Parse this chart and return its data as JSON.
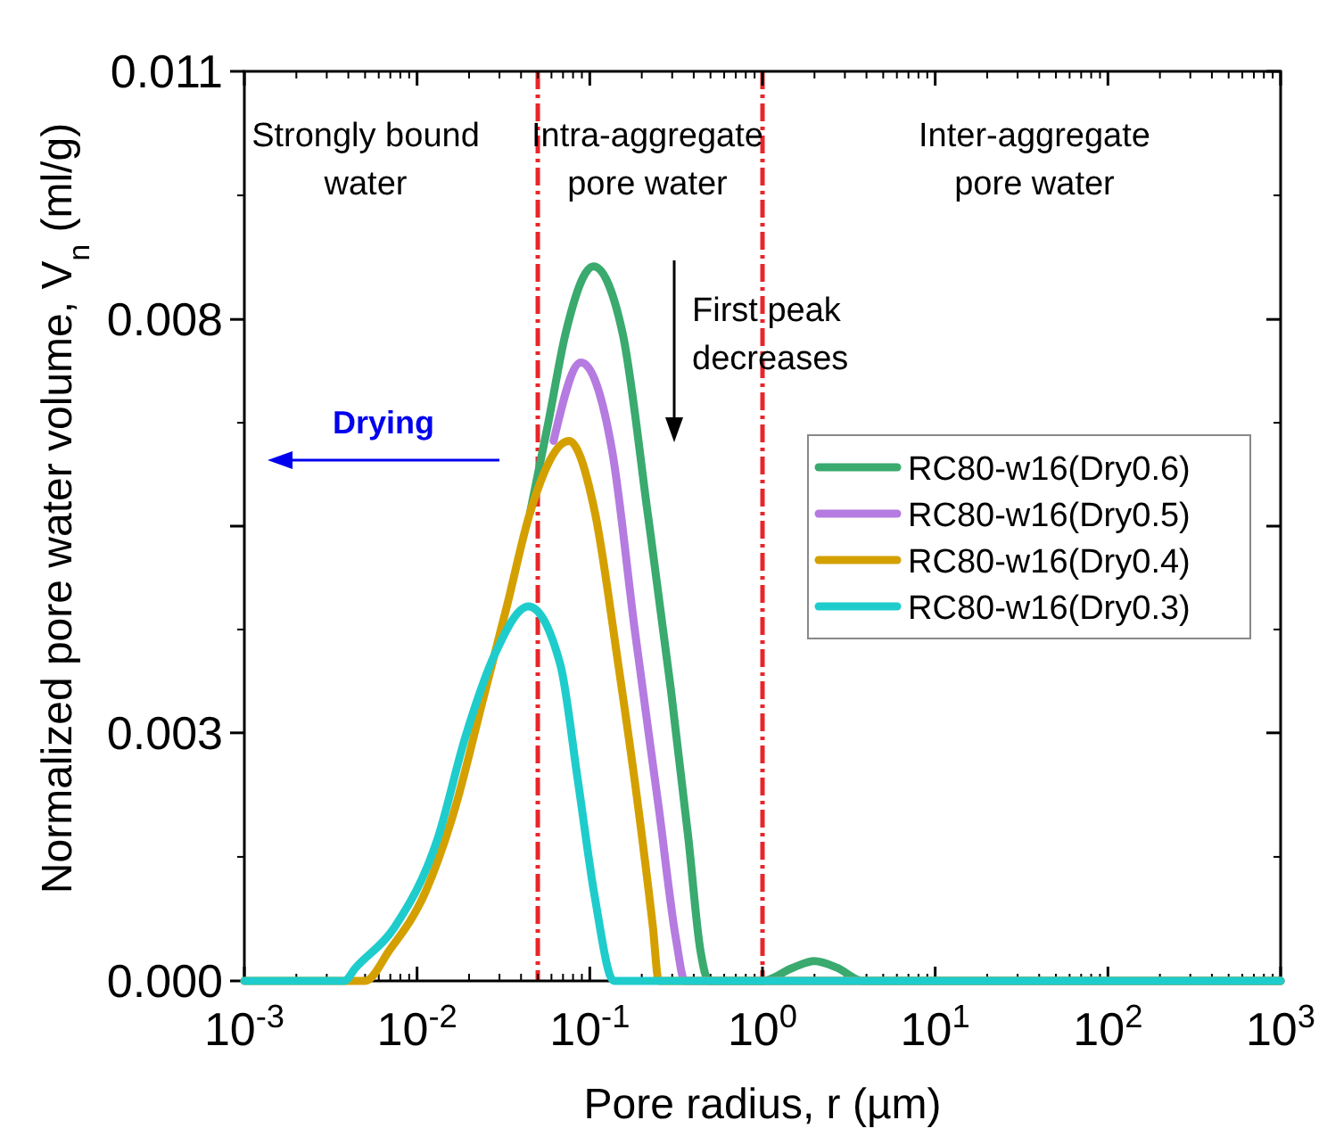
{
  "chart_data": {
    "type": "line",
    "xlabel": "Pore radius, r (µm)",
    "ylabel": "Normalized pore water volume, V$_{n}$ (ml/g)",
    "log": "x",
    "xlim": [
      0.001,
      1000
    ],
    "ylim": [
      0,
      0.011
    ],
    "xticks": [
      {
        "value": 0.001,
        "label": "10$^{-3}$"
      },
      {
        "value": 0.01,
        "label": "10$^{-2}$"
      },
      {
        "value": 0.1,
        "label": "10$^{-1}$"
      },
      {
        "value": 1,
        "label": "10$^{0}$"
      },
      {
        "value": 10,
        "label": "10$^{1}$"
      },
      {
        "value": 100,
        "label": "10$^{2}$"
      },
      {
        "value": 1000,
        "label": "10$^{3}$"
      }
    ],
    "yticks": [
      {
        "value": 0,
        "label": "0.000"
      },
      0.003,
      {
        "value": 0.0055,
        "label": null
      },
      0.008,
      0.011
    ],
    "grid": false,
    "legend": "right",
    "marker": "none",
    "line_style": "solid",
    "ref_lines": [
      {
        "axis": "x",
        "value": 0.05,
        "color": "#e8262a",
        "line_style": "dashed"
      },
      {
        "axis": "x",
        "value": 1,
        "color": "#e8262a",
        "line_style": "dashed"
      }
    ],
    "annotations": [
      "Strongly bound\nwater",
      "Intra-aggregate\npore water",
      "Inter-aggregate\npore water",
      "First peak\ndecreases",
      "Drying"
    ],
    "series": [
      {
        "name": "RC80-w16(Dry0.6)",
        "color": "#3aaa6e",
        "x": [
          0.0452,
          0.0575,
          0.0724,
          0.105,
          0.155,
          0.216,
          0.295,
          0.372,
          0.437,
          0.49,
          1,
          1.5,
          2,
          2.7,
          3.8,
          1000
        ],
        "values": [
          0.00567,
          0.00675,
          0.00783,
          0.00864,
          0.00783,
          0.00567,
          0.00352,
          0.00173,
          0.00037,
          0,
          0,
          0.00016,
          0.00024,
          0.00016,
          0,
          0
        ]
      },
      {
        "name": "RC80-w16(Dry0.5)",
        "color": "#b57be0",
        "x": [
          0.0617,
          0.0891,
          0.135,
          0.182,
          0.251,
          0.316,
          0.355,
          1000
        ],
        "values": [
          0.00653,
          0.00748,
          0.0064,
          0.00425,
          0.00209,
          0.0005,
          0,
          0
        ]
      },
      {
        "name": "RC80-w16(Dry0.4)",
        "color": "#d4a000",
        "x": [
          0.001,
          0.005,
          0.00692,
          0.0112,
          0.0166,
          0.024,
          0.0331,
          0.0452,
          0.0759,
          0.107,
          0.145,
          0.191,
          0.232,
          0.251,
          1000
        ],
        "values": [
          0,
          0,
          0.00037,
          0.00108,
          0.00209,
          0.00339,
          0.00453,
          0.00567,
          0.00653,
          0.00567,
          0.00388,
          0.00209,
          0.00065,
          0,
          0
        ]
      },
      {
        "name": "RC80-w16(Dry0.3)",
        "color": "#1fcccc",
        "x": [
          0.001,
          0.0038,
          0.00437,
          0.00741,
          0.0132,
          0.0191,
          0.0282,
          0.0442,
          0.0676,
          0.0851,
          0.107,
          0.138,
          1000
        ],
        "values": [
          0,
          0,
          0.00015,
          0.00065,
          0.00173,
          0.00296,
          0.00395,
          0.00453,
          0.00382,
          0.00244,
          0.00101,
          0,
          0
        ]
      }
    ]
  }
}
